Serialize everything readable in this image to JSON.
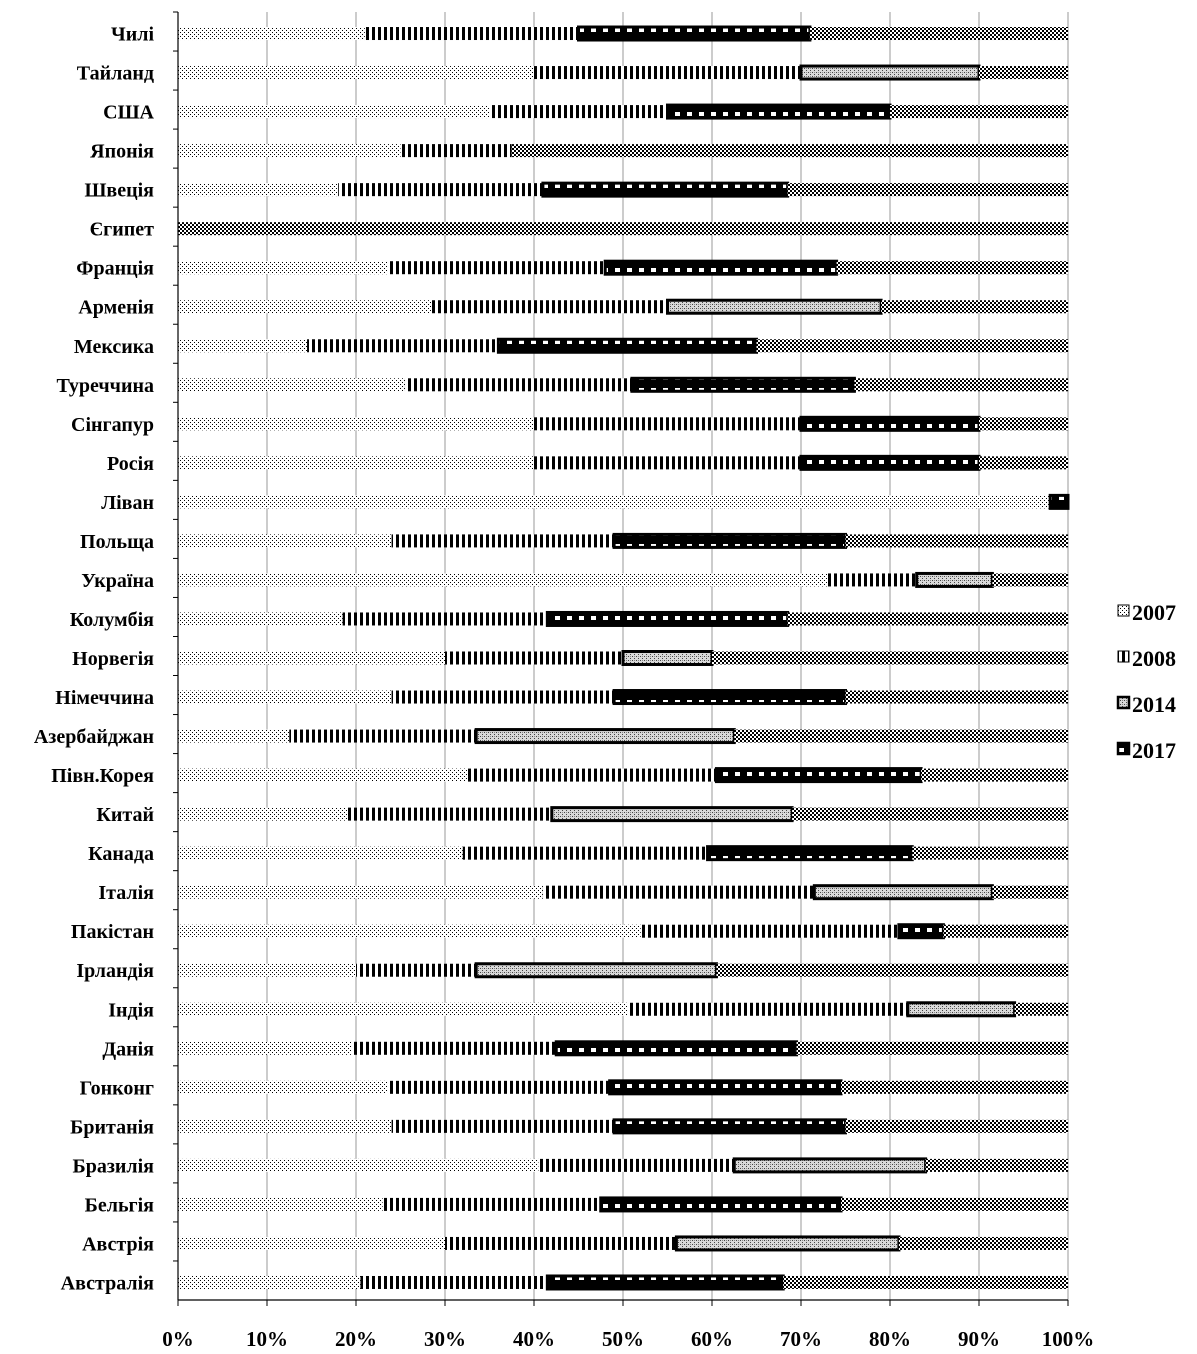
{
  "chart_data": {
    "type": "bar",
    "orientation": "horizontal",
    "stacked": "percent",
    "categories": [
      "Чилі",
      "Тайланд",
      "США",
      "Японія",
      "Швеція",
      "Єгипет",
      "Франція",
      "Арменія",
      "Мексика",
      "Туреччина",
      "Сінгапур",
      "Росія",
      "Ліван",
      "Польща",
      "Україна",
      "Колумбія",
      "Норвегія",
      "Німеччина",
      "Азербайджан",
      "Півн.Корея",
      "Китай",
      "Канада",
      "Італія",
      "Пакістан",
      "Ірландія",
      "Індія",
      "Данія",
      "Гонконг",
      "Британія",
      "Бразилія",
      "Бельгія",
      "Австрія",
      "Австралія"
    ],
    "series": [
      {
        "name": "2007",
        "pattern": "fine-dots",
        "values": [
          21,
          40,
          35,
          25,
          18,
          0,
          23.5,
          28.5,
          14.5,
          25.5,
          40,
          40,
          98,
          24,
          73,
          18.5,
          30,
          24,
          12.5,
          32.5,
          19,
          32,
          41,
          52,
          20,
          50.5,
          19.5,
          23.5,
          24,
          40.5,
          23,
          30,
          20.5
        ]
      },
      {
        "name": "2008",
        "pattern": "vertical-stripes",
        "values": [
          24,
          30,
          20,
          12.5,
          23,
          0,
          24.5,
          26.5,
          21.5,
          25.5,
          30,
          30,
          0,
          25,
          10,
          23,
          20,
          25,
          21,
          28,
          23,
          27.5,
          30.5,
          29,
          13.5,
          31.5,
          23,
          25,
          25,
          22,
          24.5,
          26,
          21
        ]
      },
      {
        "name": "2014",
        "pattern": "light-diagonal",
        "values": [
          0,
          20,
          0,
          0,
          0,
          0,
          0,
          24,
          0,
          0,
          0,
          0,
          0,
          0,
          8.5,
          0,
          10,
          0,
          29,
          0,
          27,
          0,
          20,
          0,
          27,
          12,
          0,
          0,
          0,
          21.5,
          0,
          25,
          0
        ]
      },
      {
        "name": "2017",
        "pattern": "dashed-bar",
        "values": [
          26,
          0,
          25,
          0,
          27.5,
          0,
          26,
          0,
          29,
          25,
          20,
          20,
          2,
          26,
          0,
          27,
          0,
          26,
          0,
          23,
          0,
          23,
          0,
          5,
          0,
          0,
          27,
          26,
          26,
          0,
          27,
          0,
          26.5
        ]
      },
      {
        "name": "remainder",
        "pattern": "dark-dots",
        "values": [
          29,
          10,
          20,
          62.5,
          31.5,
          100,
          26,
          21,
          35,
          24,
          10,
          10,
          0,
          25,
          8.5,
          31.5,
          40,
          25,
          37.5,
          16.5,
          31,
          17.5,
          8.5,
          14,
          39.5,
          6,
          30.5,
          25.5,
          25,
          16,
          25.5,
          19,
          32
        ]
      }
    ],
    "legend": [
      "2007",
      "2008",
      "2014",
      "2017"
    ],
    "legend_position": "right",
    "x_ticks": [
      "0%",
      "10%",
      "20%",
      "30%",
      "40%",
      "50%",
      "60%",
      "70%",
      "80%",
      "90%",
      "100%"
    ],
    "xlim": [
      0,
      100
    ],
    "grid": "vertical",
    "title": "",
    "xlabel": "",
    "ylabel": ""
  }
}
